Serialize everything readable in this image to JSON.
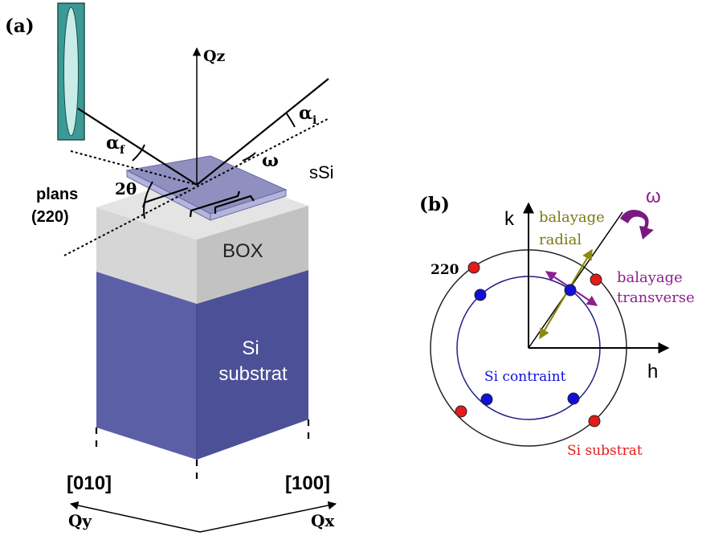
{
  "panel_a": {
    "label": "(a)",
    "qz_label": "Qz",
    "alpha_i": "α",
    "alpha_i_sub": "i",
    "alpha_f": "α",
    "alpha_f_sub": "f",
    "omega": "ω",
    "two_theta": "2θ",
    "ssi": "sSi",
    "plans_line1": "plans",
    "plans_line2": "(220)",
    "box": "BOX",
    "si_line1": "Si",
    "si_line2": "substrat",
    "dir_010": "[010]",
    "dir_100": "[100]",
    "qy_label": "Qy",
    "qx_label": "Qx"
  },
  "panel_b": {
    "label": "(b)",
    "k_label": "k",
    "h_label": "h",
    "omega": "ω",
    "radial_line1": "balayage",
    "radial_line2": "radial",
    "transverse_line1": "balayage",
    "transverse_line2": "transverse",
    "reflection_220": "220",
    "si_contraint": "Si contraint",
    "si_substrat": "Si substrat"
  },
  "colors": {
    "substrate_front": "#5b5fa6",
    "substrate_side": "#4c5096",
    "box_front": "#d6d6d6",
    "box_side": "#c2c2c2",
    "ssi_top": "#8f8fc0",
    "ssi_side": "#b4b4dc",
    "detector": "#3c9a96",
    "radial": "#8a8a10",
    "transverse": "#8b1f8e",
    "si_contraint": "#1010d8",
    "si_substrat": "#e51a1a",
    "label_green": "#7a7a10",
    "label_purple": "#8b1f8e"
  }
}
